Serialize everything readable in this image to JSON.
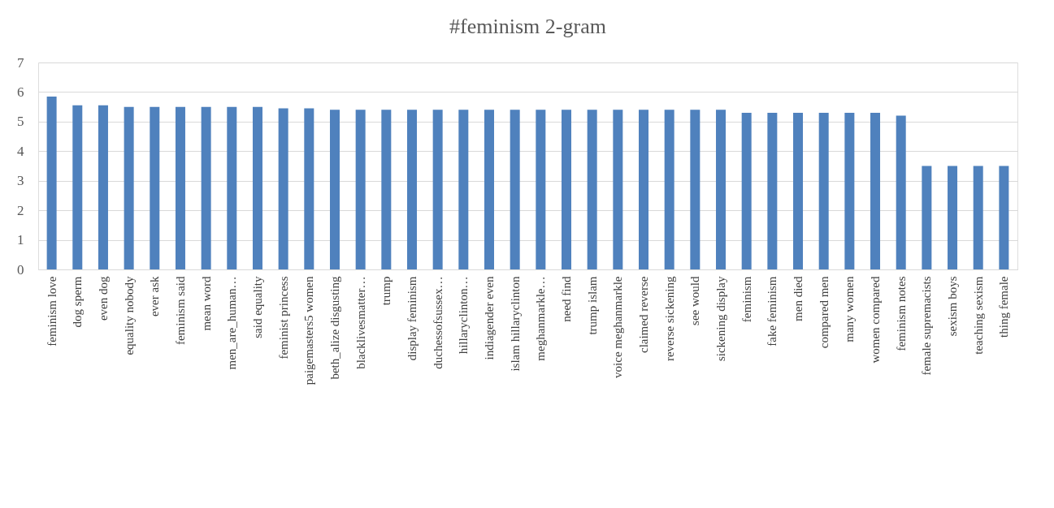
{
  "chart_data": {
    "type": "bar",
    "title": "#feminism 2-gram",
    "categories": [
      "feminism love",
      "dog sperm",
      "even dog",
      "equality nobody",
      "ever ask",
      "feminism said",
      "mean word",
      "men_are_human…",
      "said equality",
      "feminist princess",
      "paigemasters5 women",
      "beth_alize disgusting",
      "blacklivesmatter…",
      "trump",
      "display feminism",
      "duchessofsussex…",
      "hillaryclinton…",
      "indiagender even",
      "islam hillaryclinton",
      "meghanmarkle…",
      "need find",
      "trump islam",
      "voice meghanmarkle",
      "claimed reverse",
      "reverse sickening",
      "see would",
      "sickening display",
      "feminism",
      "fake feminism",
      "men died",
      "compared men",
      "many women",
      "women compared",
      "feminism notes",
      "female supremacists",
      "sexism boys",
      "teaching sexism",
      "thing female"
    ],
    "values": [
      5.85,
      5.55,
      5.55,
      5.5,
      5.5,
      5.5,
      5.5,
      5.5,
      5.5,
      5.45,
      5.45,
      5.4,
      5.4,
      5.4,
      5.4,
      5.4,
      5.4,
      5.4,
      5.4,
      5.4,
      5.4,
      5.4,
      5.4,
      5.4,
      5.4,
      5.4,
      5.4,
      5.3,
      5.3,
      5.3,
      5.3,
      5.3,
      5.3,
      5.2,
      3.5,
      3.5,
      3.5,
      3.5
    ],
    "color": "#4f81bd",
    "ylim": [
      0,
      7
    ],
    "yticks": [
      0,
      1,
      2,
      3,
      4,
      5,
      6,
      7
    ],
    "grid": "y"
  }
}
